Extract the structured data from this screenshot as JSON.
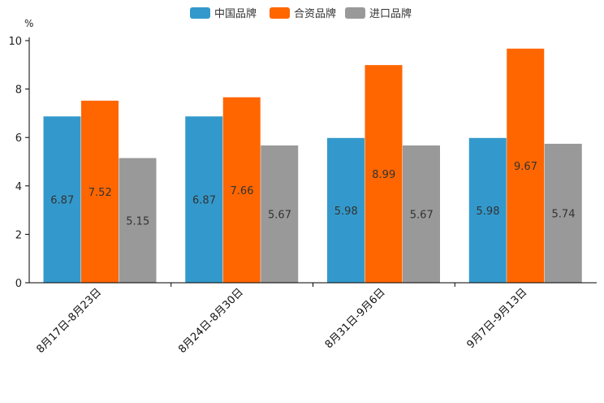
{
  "chart_data": {
    "type": "bar",
    "unit": "%",
    "categories": [
      "8月17日-8月23日",
      "8月24日-8月30日",
      "8月31日-9月6日",
      "9月7日-9月13日"
    ],
    "series": [
      {
        "name": "中国品牌",
        "color": "#3399cc",
        "values": [
          6.87,
          6.87,
          5.98,
          5.98
        ],
        "labels": [
          "6.87",
          "6.87",
          "5.98",
          "5.98"
        ]
      },
      {
        "name": "合资品牌",
        "color": "#ff6600",
        "values": [
          7.52,
          7.66,
          8.99,
          9.67
        ],
        "labels": [
          "7.52",
          "7.66",
          "8.99",
          "9.67"
        ]
      },
      {
        "name": "进口品牌",
        "color": "#999999",
        "values": [
          5.15,
          5.67,
          5.67,
          5.74
        ],
        "labels": [
          "5.15",
          "5.67",
          "5.67",
          "5.74"
        ]
      }
    ],
    "ylim": [
      0,
      10
    ],
    "yticks": [
      0,
      2,
      4,
      6,
      8,
      10
    ],
    "ytick_labels": [
      "0",
      "2",
      "4",
      "6",
      "8",
      "10"
    ],
    "legend_position": "top-center",
    "grid": false
  }
}
